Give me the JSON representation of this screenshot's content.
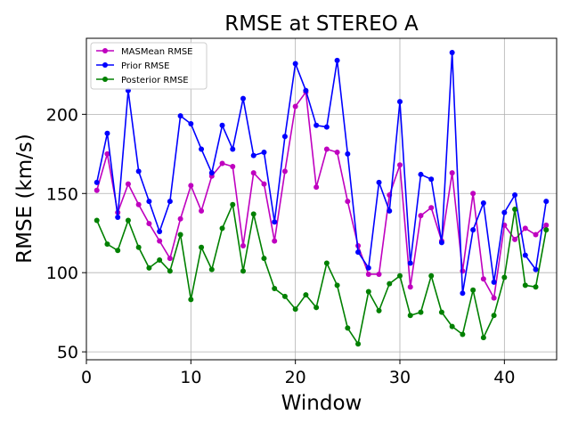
{
  "chart_data": {
    "type": "line",
    "title": "RMSE at STEREO A",
    "xlabel": "Window",
    "ylabel": "RMSE (km/s)",
    "xlim": [
      0,
      45
    ],
    "ylim": [
      45,
      248
    ],
    "xticks": [
      0,
      10,
      20,
      30,
      40
    ],
    "yticks": [
      50,
      100,
      150,
      200
    ],
    "grid": true,
    "legend_position": "top-left",
    "x": [
      1,
      2,
      3,
      4,
      5,
      6,
      7,
      8,
      9,
      10,
      11,
      12,
      13,
      14,
      15,
      16,
      17,
      18,
      19,
      20,
      21,
      22,
      23,
      24,
      25,
      26,
      27,
      28,
      29,
      30,
      31,
      32,
      33,
      34,
      35,
      36,
      37,
      38,
      39,
      40,
      41,
      42,
      43,
      44
    ],
    "series": [
      {
        "name": "MASMean RMSE",
        "color": "#bf00bf",
        "values": [
          152,
          175,
          138,
          156,
          143,
          131,
          120,
          109,
          134,
          155,
          139,
          161,
          169,
          167,
          117,
          163,
          156,
          120,
          164,
          205,
          214,
          154,
          178,
          176,
          145,
          117,
          99,
          99,
          149,
          168,
          91,
          136,
          141,
          120,
          163,
          101,
          150,
          96,
          84,
          130,
          121,
          128,
          124,
          130
        ]
      },
      {
        "name": "Prior RMSE",
        "color": "#0000ff",
        "values": [
          157,
          188,
          135,
          215,
          164,
          145,
          126,
          145,
          199,
          194,
          178,
          163,
          193,
          178,
          210,
          174,
          176,
          132,
          186,
          232,
          215,
          193,
          192,
          234,
          175,
          113,
          103,
          157,
          139,
          208,
          106,
          162,
          159,
          119,
          239,
          87,
          127,
          144,
          94,
          138,
          149,
          111,
          102,
          145
        ]
      },
      {
        "name": "Posterior RMSE",
        "color": "#008000",
        "values": [
          133,
          118,
          114,
          133,
          116,
          103,
          108,
          101,
          124,
          83,
          116,
          102,
          128,
          143,
          101,
          137,
          109,
          90,
          85,
          77,
          86,
          78,
          106,
          92,
          65,
          55,
          88,
          76,
          93,
          98,
          73,
          75,
          98,
          75,
          66,
          61,
          89,
          59,
          73,
          97,
          140,
          92,
          91,
          127
        ]
      }
    ]
  }
}
